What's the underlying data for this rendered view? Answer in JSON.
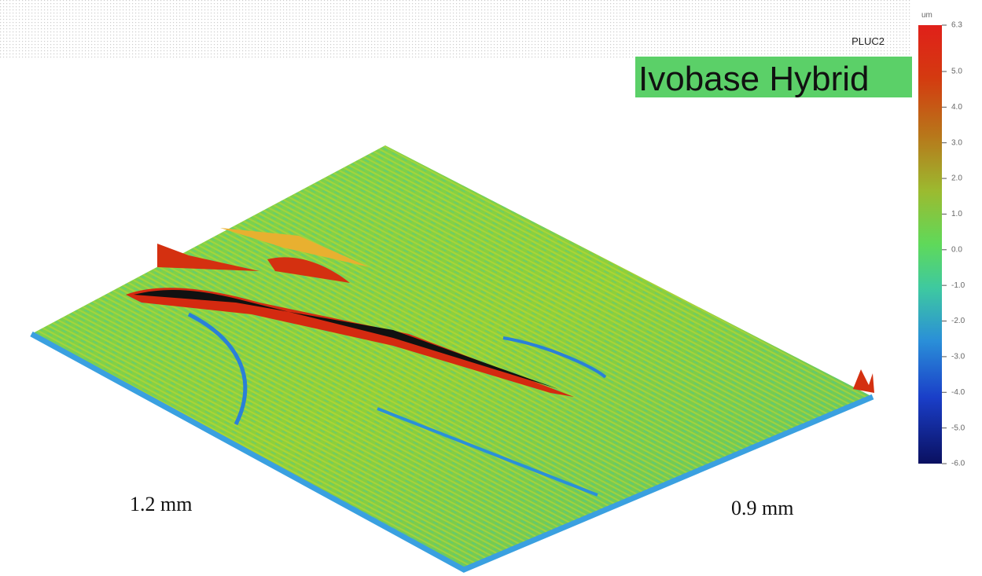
{
  "header": {
    "sample": "PLUC2",
    "title": "Ivobase Hybrid"
  },
  "colorbar": {
    "unit": "um",
    "lim": [
      -6.0,
      6.3
    ],
    "ticks": [
      6.3,
      {
        "value": 5.0,
        "label": "5.0"
      },
      {
        "value": 4.0,
        "label": "4.0"
      },
      {
        "value": 3.0,
        "label": "3.0"
      },
      {
        "value": 2.0,
        "label": "2.0"
      },
      {
        "value": 1.0,
        "label": "1.0"
      },
      {
        "value": 0.0,
        "label": "0.0"
      },
      {
        "value": -1.0,
        "label": "-1.0"
      },
      {
        "value": -2.0,
        "label": "-2.0"
      },
      {
        "value": -3.0,
        "label": "-3.0"
      },
      {
        "value": -4.0,
        "label": "-4.0"
      },
      {
        "value": -5.0,
        "label": "-5.0"
      },
      {
        "value": -6.0,
        "label": "-6.0"
      }
    ]
  },
  "dimensions": {
    "left": "1.2 mm",
    "right": "0.9 mm"
  }
}
